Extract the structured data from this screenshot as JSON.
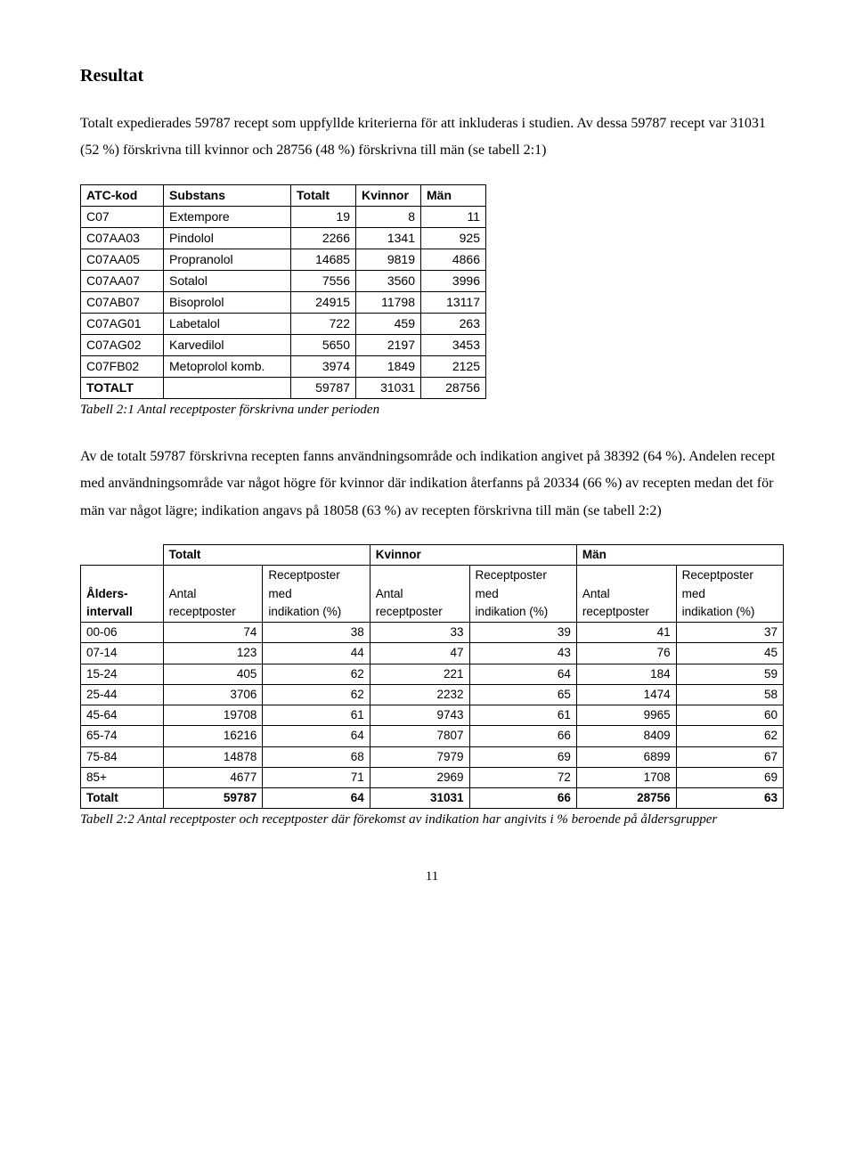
{
  "heading": "Resultat",
  "para1": "Totalt expedierades 59787 recept som uppfyllde kriterierna för att inkluderas i studien. Av dessa 59787 recept var 31031 (52 %) förskrivna till kvinnor och 28756 (48 %) förskrivna till män (se tabell 2:1)",
  "table1": {
    "headers": [
      "ATC-kod",
      "Substans",
      "Totalt",
      "Kvinnor",
      "Män"
    ],
    "rows": [
      [
        "C07",
        "Extempore",
        "19",
        "8",
        "11"
      ],
      [
        "C07AA03",
        "Pindolol",
        "2266",
        "1341",
        "925"
      ],
      [
        "C07AA05",
        "Propranolol",
        "14685",
        "9819",
        "4866"
      ],
      [
        "C07AA07",
        "Sotalol",
        "7556",
        "3560",
        "3996"
      ],
      [
        "C07AB07",
        "Bisoprolol",
        "24915",
        "11798",
        "13117"
      ],
      [
        "C07AG01",
        "Labetalol",
        "722",
        "459",
        "263"
      ],
      [
        "C07AG02",
        "Karvedilol",
        "5650",
        "2197",
        "3453"
      ],
      [
        "C07FB02",
        "Metoprolol komb.",
        "3974",
        "1849",
        "2125"
      ],
      [
        "TOTALT",
        "",
        "59787",
        "31031",
        "28756"
      ]
    ],
    "caption": "Tabell 2:1 Antal receptposter förskrivna under perioden"
  },
  "para2": "Av de totalt 59787 förskrivna recepten fanns användningsområde och indikation angivet på 38392 (64 %). Andelen recept med användningsområde var något högre för kvinnor där indikation återfanns på 20334 (66 %) av recepten medan det för män var något lägre; indikation angavs på 18058 (63 %) av recepten förskrivna till män (se tabell 2:2)",
  "table2": {
    "group_headers": [
      "",
      "Totalt",
      "Kvinnor",
      "Män"
    ],
    "sub_headers": [
      "Ålders-intervall",
      "Antal receptposter",
      "Receptposter med indikation (%)",
      "Antal receptposter",
      "Receptposter med indikation (%)",
      "Antal receptposter",
      "Receptposter med indikation (%)"
    ],
    "rows": [
      [
        "00-06",
        "74",
        "38",
        "33",
        "39",
        "41",
        "37"
      ],
      [
        "07-14",
        "123",
        "44",
        "47",
        "43",
        "76",
        "45"
      ],
      [
        "15-24",
        "405",
        "62",
        "221",
        "64",
        "184",
        "59"
      ],
      [
        "25-44",
        "3706",
        "62",
        "2232",
        "65",
        "1474",
        "58"
      ],
      [
        "45-64",
        "19708",
        "61",
        "9743",
        "61",
        "9965",
        "60"
      ],
      [
        "65-74",
        "16216",
        "64",
        "7807",
        "66",
        "8409",
        "62"
      ],
      [
        "75-84",
        "14878",
        "68",
        "7979",
        "69",
        "6899",
        "67"
      ],
      [
        "85+",
        "4677",
        "71",
        "2969",
        "72",
        "1708",
        "69"
      ],
      [
        "Totalt",
        "59787",
        "64",
        "31031",
        "66",
        "28756",
        "63"
      ]
    ],
    "caption": "Tabell 2:2 Antal receptposter och receptposter där förekomst av indikation har angivits i % beroende på åldersgrupper"
  },
  "page_number": "11"
}
